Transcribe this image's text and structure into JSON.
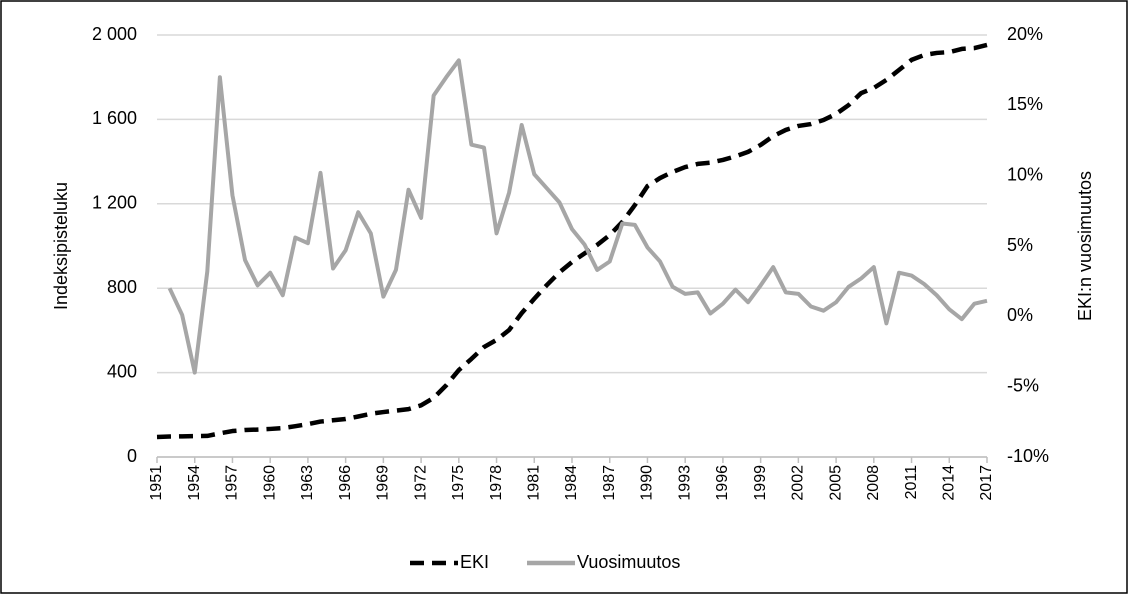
{
  "chart_data": {
    "type": "line",
    "y_label": "Indeksipisteluku",
    "y2_label": "EKI:n vuosimuutos",
    "x": [
      1951,
      1952,
      1953,
      1954,
      1955,
      1956,
      1957,
      1958,
      1959,
      1960,
      1961,
      1962,
      1963,
      1964,
      1965,
      1966,
      1967,
      1968,
      1969,
      1970,
      1971,
      1972,
      1973,
      1974,
      1975,
      1976,
      1977,
      1978,
      1979,
      1980,
      1981,
      1982,
      1983,
      1984,
      1985,
      1986,
      1987,
      1988,
      1989,
      1990,
      1991,
      1992,
      1993,
      1994,
      1995,
      1996,
      1997,
      1998,
      1999,
      2000,
      2001,
      2002,
      2003,
      2004,
      2005,
      2006,
      2007,
      2008,
      2009,
      2010,
      2011,
      2012,
      2013,
      2014,
      2015,
      2016,
      2017
    ],
    "series": [
      {
        "name": "EKI",
        "color": "#000000",
        "line_style": "dashed",
        "axis": "y",
        "values": [
          95,
          97,
          98,
          99,
          100,
          112,
          123,
          128,
          130,
          133,
          137,
          146,
          156,
          168,
          174,
          180,
          192,
          205,
          213,
          220,
          227,
          245,
          280,
          340,
          412,
          465,
          521,
          555,
          602,
          682,
          750,
          815,
          875,
          924,
          965,
          1005,
          1052,
          1114,
          1194,
          1284,
          1322,
          1351,
          1374,
          1389,
          1395,
          1408,
          1425,
          1446,
          1479,
          1521,
          1550,
          1569,
          1578,
          1597,
          1626,
          1668,
          1725,
          1749,
          1787,
          1834,
          1882,
          1905,
          1915,
          1919,
          1934,
          1938,
          1953
        ]
      },
      {
        "name": "Vuosimuutos",
        "color": "#a6a6a6",
        "line_style": "solid",
        "axis": "y2",
        "values": [
          null,
          2.0,
          0.1,
          -4.0,
          3.2,
          17.0,
          8.6,
          4.0,
          2.2,
          3.1,
          1.5,
          5.6,
          5.2,
          10.2,
          3.4,
          4.7,
          7.4,
          5.9,
          1.4,
          3.3,
          9.0,
          7.0,
          15.7,
          17.0,
          18.2,
          12.2,
          12.0,
          5.9,
          8.8,
          13.6,
          10.1,
          9.1,
          8.1,
          6.2,
          5.1,
          3.3,
          3.9,
          6.6,
          6.5,
          4.9,
          3.9,
          2.1,
          1.6,
          1.7,
          0.2,
          0.9,
          1.9,
          1.0,
          2.2,
          3.5,
          1.7,
          1.6,
          0.7,
          0.4,
          1.0,
          2.1,
          2.7,
          3.5,
          -0.5,
          3.1,
          2.9,
          2.3,
          1.5,
          0.5,
          -0.2,
          0.9,
          1.1
        ]
      }
    ],
    "xlim": [
      1951,
      2017
    ],
    "xticks": [
      1951,
      1954,
      1957,
      1960,
      1963,
      1966,
      1969,
      1972,
      1975,
      1978,
      1981,
      1984,
      1987,
      1990,
      1993,
      1996,
      1999,
      2002,
      2005,
      2008,
      2011,
      2014,
      2017
    ],
    "ylim": [
      0,
      2000
    ],
    "yticks": [
      0,
      400,
      800,
      {
        "value": 1200,
        "label": "1 200"
      },
      {
        "value": 1600,
        "label": "1 600"
      },
      {
        "value": 2000,
        "label": "2 000"
      }
    ],
    "y2lim": [
      -10,
      20
    ],
    "y2ticks": [
      {
        "value": -10,
        "label": "-10%"
      },
      {
        "value": -5,
        "label": "-5%"
      },
      {
        "value": 0,
        "label": "0%"
      },
      {
        "value": 5,
        "label": "5%"
      },
      {
        "value": 10,
        "label": "10%"
      },
      {
        "value": 15,
        "label": "15%"
      },
      {
        "value": 20,
        "label": "20%"
      }
    ],
    "grid": true,
    "legend": "bottom"
  }
}
